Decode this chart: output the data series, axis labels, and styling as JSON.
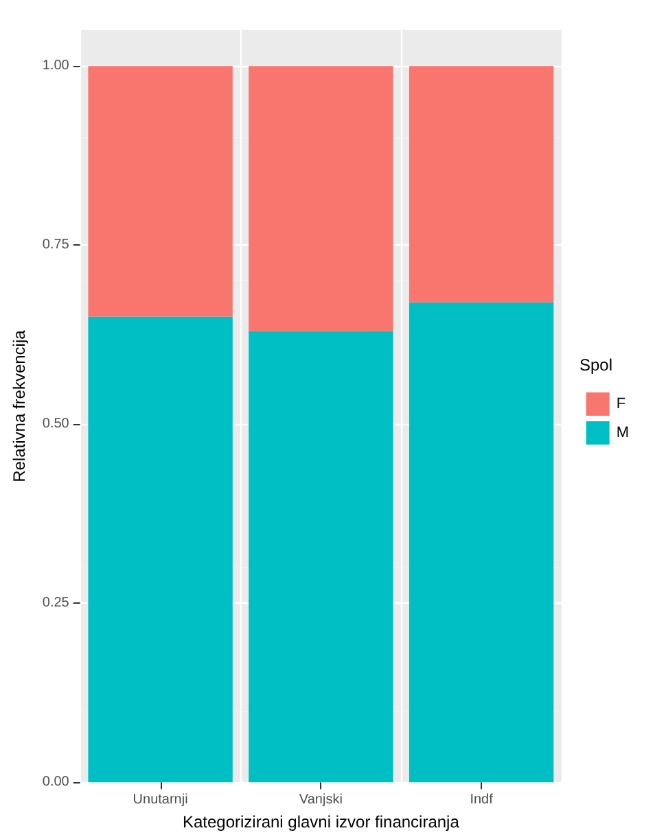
{
  "chart_data": {
    "type": "bar",
    "stacked": true,
    "xlabel": "Kategorizirani glavni izvor financiranja",
    "ylabel": "Relativna frekvencija",
    "legend_title": "Spol",
    "categories": [
      "Unutarnji",
      "Vanjski",
      "Indf"
    ],
    "series": [
      {
        "name": "M",
        "color": "#00bfc4",
        "values": [
          0.65,
          0.63,
          0.67
        ]
      },
      {
        "name": "F",
        "color": "#f8766d",
        "values": [
          0.35,
          0.37,
          0.33
        ]
      }
    ],
    "ylim": [
      0,
      1.05
    ],
    "yticks": [
      {
        "value": 0,
        "label": "0.00"
      },
      {
        "value": 0.25,
        "label": "0.25"
      },
      {
        "value": 0.5,
        "label": "0.50"
      },
      {
        "value": 0.75,
        "label": "0.75"
      },
      {
        "value": 1,
        "label": "1.00"
      }
    ],
    "grid": true,
    "legend": "right"
  }
}
